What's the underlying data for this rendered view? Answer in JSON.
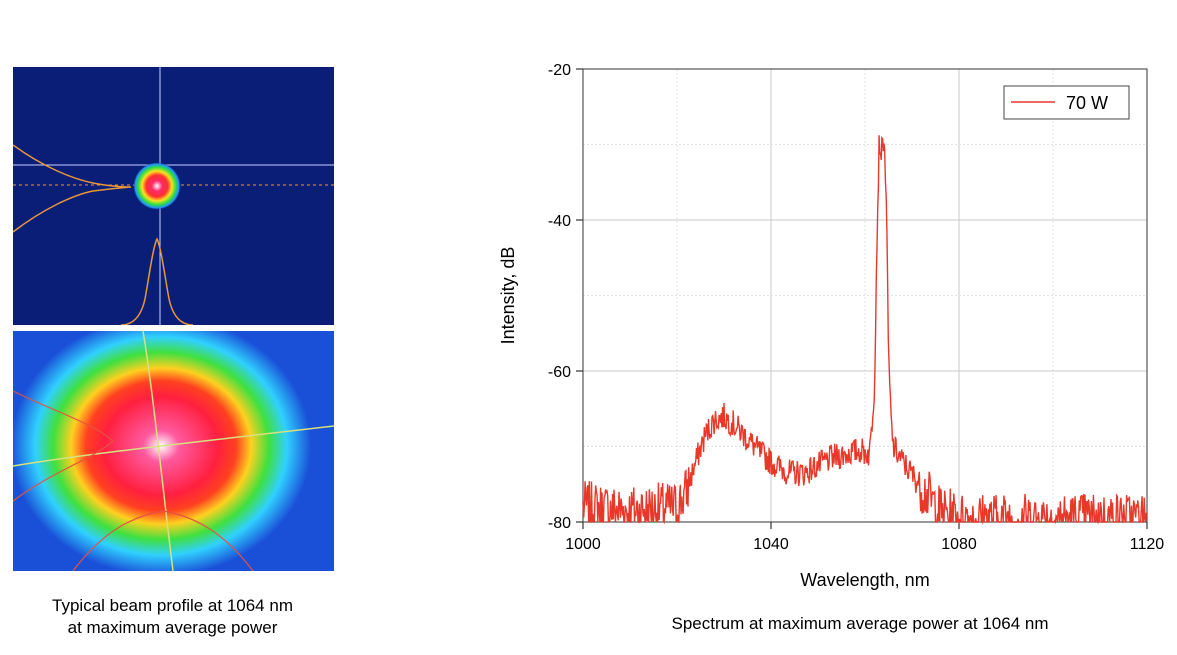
{
  "captions": {
    "beam_profile_line1": "Typical beam profile at 1064 nm",
    "beam_profile_line2": "at maximum average power",
    "spectrum": "Spectrum at maximum average power at 1064 nm"
  },
  "colors": {
    "spectrum_line": "#e8382a",
    "beam_background": "#0a1e78",
    "crosshair": "#c8d2ff",
    "profile_curve": "#e8963a"
  },
  "chart_data": {
    "type": "line",
    "title": "",
    "xlabel": "Wavelength, nm",
    "ylabel": "Intensity, dB",
    "xlim": [
      1000,
      1120
    ],
    "ylim": [
      -80,
      -20
    ],
    "xticks": [
      1000,
      1040,
      1080,
      1120
    ],
    "yticks": [
      -20,
      -40,
      -60,
      -80
    ],
    "grid": true,
    "legend": {
      "position": "top-right",
      "entries": [
        "70 W"
      ]
    },
    "series": [
      {
        "name": "70 W",
        "color": "#e8382a",
        "x": [
          1000,
          1010,
          1020,
          1022,
          1024,
          1026,
          1028,
          1030,
          1032,
          1035,
          1038,
          1041,
          1044,
          1047,
          1050,
          1053,
          1056,
          1059,
          1061,
          1062,
          1062.5,
          1063,
          1063.5,
          1064,
          1064.5,
          1065,
          1065.5,
          1066,
          1068,
          1071,
          1074,
          1076,
          1078,
          1080,
          1090,
          1100,
          1110,
          1120
        ],
        "y": [
          -78,
          -78.5,
          -78,
          -76,
          -72,
          -68.5,
          -66.5,
          -66,
          -67,
          -69,
          -71,
          -72.5,
          -73.5,
          -73.5,
          -72.5,
          -71.5,
          -71,
          -70.5,
          -71,
          -62,
          -44,
          -30,
          -31,
          -29,
          -36,
          -58,
          -66,
          -70,
          -72,
          -74.5,
          -77,
          -78.5,
          -79,
          -79.5,
          -79.5,
          -79.5,
          -79.5,
          -79.5
        ]
      }
    ]
  }
}
